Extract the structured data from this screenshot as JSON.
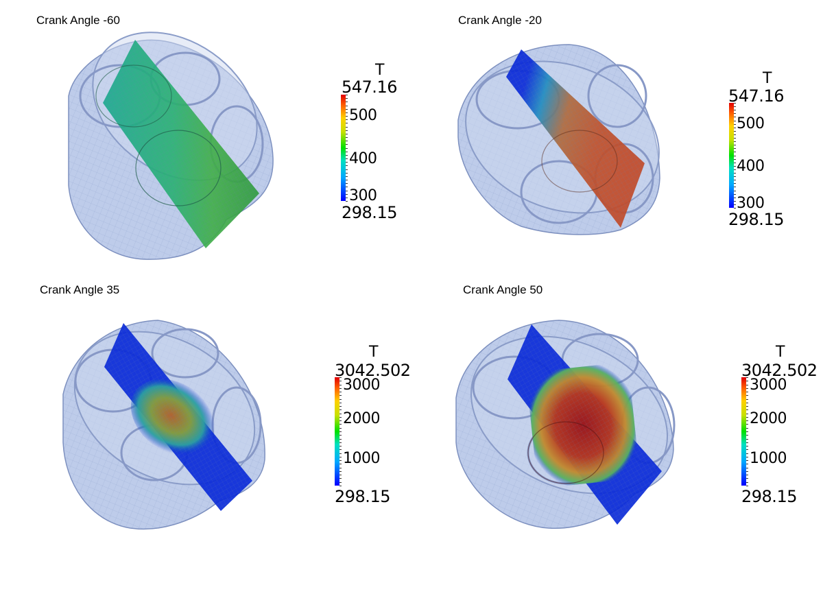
{
  "panels": [
    {
      "title": "Crank Angle -60",
      "colorbar": {
        "field": "T",
        "max": "547.16",
        "min": "298.15",
        "ticks": [
          "500",
          "400",
          "300"
        ]
      }
    },
    {
      "title": "Crank Angle -20",
      "colorbar": {
        "field": "T",
        "max": "547.16",
        "min": "298.15",
        "ticks": [
          "500",
          "400",
          "300"
        ]
      }
    },
    {
      "title": "Crank Angle 35",
      "colorbar": {
        "field": "T",
        "max": "3042.502",
        "min": "298.15",
        "ticks": [
          "3000",
          "2000",
          "1000"
        ]
      }
    },
    {
      "title": "Crank Angle 50",
      "colorbar": {
        "field": "T",
        "max": "3042.502",
        "min": "298.15",
        "ticks": [
          "3000",
          "2000",
          "1000"
        ]
      }
    }
  ],
  "colors": {
    "shell": "#b8c8e8",
    "shell_edge": "#6a7fb0",
    "cold": "#0018c8",
    "warm": "#2e9a58",
    "hot": "#a82818"
  }
}
